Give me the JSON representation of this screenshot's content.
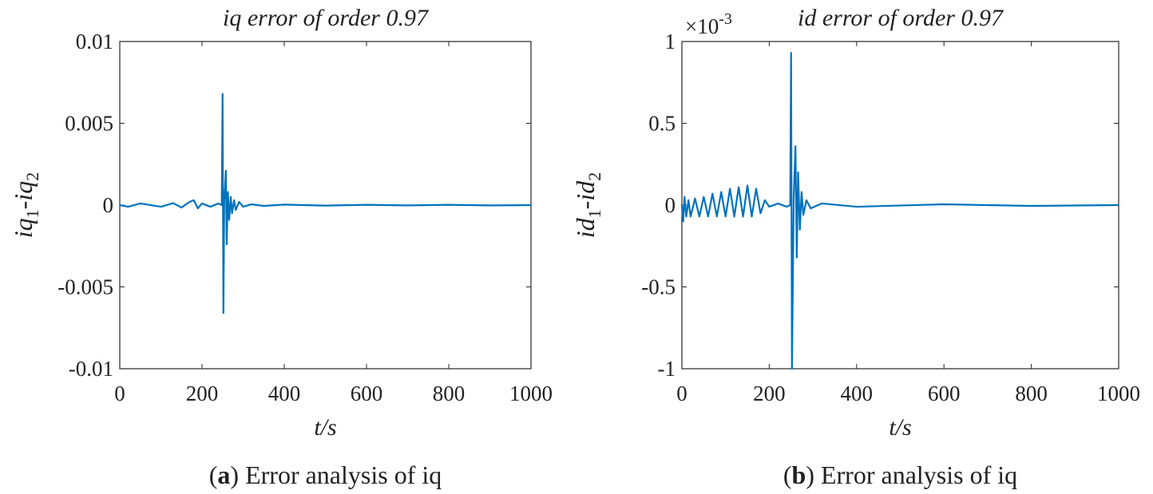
{
  "chart_data": [
    {
      "type": "line",
      "title": "iq error of order 0.97",
      "xlabel": "t/s",
      "ylabel": [
        "iq",
        "1",
        "-iq",
        "2"
      ],
      "x": [
        0,
        20,
        50,
        100,
        130,
        150,
        170,
        180,
        190,
        200,
        220,
        240,
        248,
        250,
        252,
        254,
        258,
        260,
        263,
        266,
        270,
        273,
        278,
        282,
        290,
        300,
        320,
        350,
        400,
        500,
        600,
        700,
        800,
        900,
        1000
      ],
      "series": [
        {
          "color": "#0072bd",
          "values": [
            0,
            -0.0001,
            0.0001,
            -0.0001,
            0.00012,
            -0.00015,
            0.0002,
            0.0003,
            -0.0002,
            0.0001,
            -0.0001,
            0.0001,
            0,
            0.0068,
            -0.0066,
            0.0002,
            0.0021,
            -0.0024,
            0.0008,
            -0.0009,
            0.0005,
            -0.0005,
            0.0003,
            -0.0003,
            0.0002,
            -0.0001,
            5e-05,
            -5e-05,
            3e-05,
            -3e-05,
            2e-05,
            -2e-05,
            2e-05,
            -2e-05,
            0
          ]
        }
      ],
      "xlim": [
        0,
        1000
      ],
      "xticks": [
        0,
        200,
        400,
        600,
        800,
        1000
      ],
      "ylim": [
        -0.01,
        0.01
      ],
      "yticks": [
        -0.01,
        -0.005,
        0,
        0.005,
        0.01
      ],
      "caption": [
        "(",
        "a",
        ") Error analysis of iq"
      ]
    },
    {
      "type": "line",
      "title": "id error of order 0.97",
      "xlabel": "t/s",
      "ylabel": [
        "id",
        "1",
        "-id",
        "2"
      ],
      "y_multiplier": {
        "base": "×10",
        "exponent": "-3"
      },
      "x": [
        0,
        3,
        6,
        10,
        15,
        20,
        30,
        40,
        50,
        60,
        70,
        80,
        90,
        100,
        110,
        120,
        130,
        140,
        150,
        160,
        170,
        180,
        190,
        200,
        220,
        240,
        248,
        250,
        252,
        256,
        260,
        263,
        266,
        270,
        274,
        278,
        285,
        295,
        320,
        400,
        600,
        800,
        1000
      ],
      "series": [
        {
          "color": "#0072bd",
          "values": [
            0,
            -0.1,
            0.05,
            -0.07,
            0.03,
            -0.07,
            0.04,
            -0.07,
            0.05,
            -0.07,
            0.07,
            -0.07,
            0.08,
            -0.07,
            0.1,
            -0.07,
            0.11,
            -0.07,
            0.12,
            -0.07,
            0.1,
            -0.05,
            0.03,
            -0.01,
            0.01,
            -0.01,
            0,
            0.93,
            -1,
            0.05,
            0.36,
            -0.32,
            0.2,
            -0.15,
            0.08,
            -0.06,
            0.03,
            -0.02,
            0.01,
            -0.01,
            0.005,
            -0.005,
            0
          ]
        }
      ],
      "xlim": [
        0,
        1000
      ],
      "xticks": [
        0,
        200,
        400,
        600,
        800,
        1000
      ],
      "ylim": [
        -1,
        1
      ],
      "yticks": [
        -1,
        -0.5,
        0,
        0.5,
        1
      ],
      "caption": [
        "(",
        "b",
        ") Error analysis of iq"
      ]
    }
  ]
}
